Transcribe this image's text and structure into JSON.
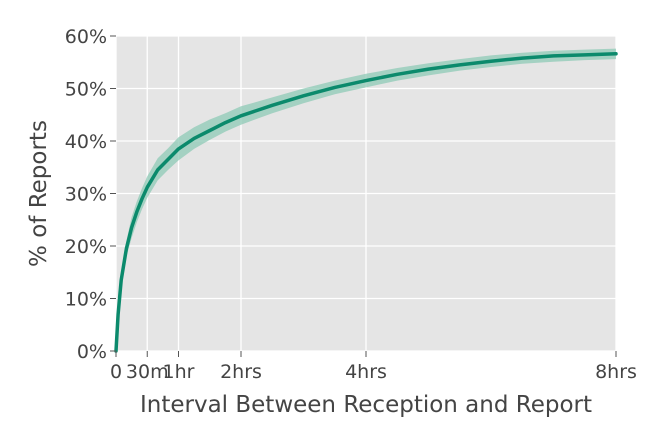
{
  "chart_data": {
    "type": "line",
    "title": "",
    "xlabel": "Interval Between Reception and Report",
    "ylabel": "% of Reports",
    "xlim": [
      0,
      480
    ],
    "ylim": [
      0,
      60
    ],
    "grid": true,
    "x_ticks": [
      {
        "value": 0,
        "label": "0"
      },
      {
        "value": 30,
        "label": "30m"
      },
      {
        "value": 60,
        "label": "1hr"
      },
      {
        "value": 120,
        "label": "2hrs"
      },
      {
        "value": 240,
        "label": "4hrs"
      },
      {
        "value": 480,
        "label": "8hrs"
      }
    ],
    "y_ticks": [
      {
        "value": 0,
        "label": "0%"
      },
      {
        "value": 10,
        "label": "10%"
      },
      {
        "value": 20,
        "label": "20%"
      },
      {
        "value": 30,
        "label": "30%"
      },
      {
        "value": 40,
        "label": "40%"
      },
      {
        "value": 50,
        "label": "50%"
      },
      {
        "value": 60,
        "label": "60%"
      }
    ],
    "series": [
      {
        "color": "#0b8a6c",
        "band_color": "#8dc9b5",
        "x": [
          0,
          2,
          5,
          10,
          15,
          20,
          25,
          30,
          40,
          50,
          60,
          75,
          90,
          105,
          120,
          150,
          180,
          210,
          240,
          270,
          300,
          330,
          360,
          390,
          420,
          450,
          480
        ],
        "y": [
          0,
          7,
          13.5,
          19.5,
          23.5,
          26.5,
          29,
          31.2,
          34.5,
          36.5,
          38.5,
          40.5,
          42,
          43.5,
          44.8,
          46.8,
          48.6,
          50.2,
          51.5,
          52.7,
          53.7,
          54.5,
          55.2,
          55.8,
          56.2,
          56.4,
          56.6
        ],
        "lower": [
          0,
          6,
          12,
          18,
          21.5,
          24.5,
          27,
          29.2,
          32.5,
          34.5,
          36.3,
          38.5,
          40.2,
          41.8,
          43.1,
          45.3,
          47.2,
          48.9,
          50.2,
          51.5,
          52.5,
          53.4,
          54.1,
          54.7,
          55.1,
          55.4,
          55.6
        ],
        "upper": [
          0,
          8,
          15,
          21,
          25.5,
          28.5,
          31,
          33.3,
          36.7,
          38.6,
          40.7,
          42.6,
          44.1,
          45.3,
          46.6,
          48.3,
          50.0,
          51.5,
          52.8,
          53.9,
          54.8,
          55.6,
          56.3,
          56.8,
          57.2,
          57.4,
          57.6
        ]
      }
    ]
  }
}
